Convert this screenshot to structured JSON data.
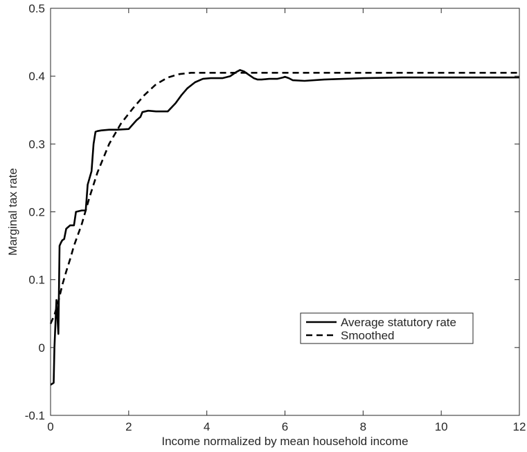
{
  "chart_data": {
    "type": "line",
    "xlabel": "Income normalized by mean household income",
    "ylabel": "Marginal tax rate",
    "xlim": [
      0,
      12
    ],
    "ylim": [
      -0.1,
      0.5
    ],
    "xticks": [
      0,
      2,
      4,
      6,
      8,
      10,
      12
    ],
    "yticks": [
      -0.1,
      0,
      0.1,
      0.2,
      0.3,
      0.4,
      0.5
    ],
    "xtick_labels": [
      "0",
      "2",
      "4",
      "6",
      "8",
      "10",
      "12"
    ],
    "ytick_labels": [
      "-0.1",
      "0",
      "0.1",
      "0.2",
      "0.3",
      "0.4",
      "0.5"
    ],
    "grid": false,
    "legend_position": "center-right",
    "series": [
      {
        "name": "Average statutory rate",
        "style": "solid",
        "color": "#000000",
        "x": [
          0.0,
          0.08,
          0.1,
          0.15,
          0.2,
          0.23,
          0.27,
          0.3,
          0.35,
          0.4,
          0.5,
          0.6,
          0.65,
          0.8,
          0.9,
          0.95,
          1.05,
          1.1,
          1.15,
          1.2,
          1.3,
          1.5,
          1.7,
          2.0,
          2.2,
          2.3,
          2.35,
          2.5,
          2.7,
          3.0,
          3.2,
          3.35,
          3.5,
          3.7,
          3.9,
          4.1,
          4.4,
          4.6,
          4.75,
          4.85,
          4.95,
          5.1,
          5.2,
          5.3,
          5.4,
          5.6,
          5.8,
          5.95,
          6.0,
          6.1,
          6.2,
          6.5,
          7.0,
          7.5,
          8.0,
          9.0,
          10.0,
          11.0,
          12.0
        ],
        "values": [
          -0.055,
          -0.052,
          0.0,
          0.07,
          0.02,
          0.15,
          0.155,
          0.158,
          0.16,
          0.175,
          0.18,
          0.18,
          0.2,
          0.202,
          0.202,
          0.24,
          0.26,
          0.3,
          0.318,
          0.319,
          0.32,
          0.321,
          0.321,
          0.322,
          0.335,
          0.34,
          0.347,
          0.349,
          0.348,
          0.348,
          0.36,
          0.372,
          0.382,
          0.391,
          0.396,
          0.397,
          0.397,
          0.4,
          0.406,
          0.409,
          0.407,
          0.401,
          0.397,
          0.395,
          0.395,
          0.396,
          0.396,
          0.398,
          0.399,
          0.397,
          0.394,
          0.393,
          0.395,
          0.396,
          0.397,
          0.398,
          0.398,
          0.398,
          0.398
        ]
      },
      {
        "name": "Smoothed",
        "style": "dashed",
        "color": "#000000",
        "x": [
          0.0,
          0.1,
          0.2,
          0.3,
          0.4,
          0.5,
          0.6,
          0.8,
          1.0,
          1.2,
          1.5,
          1.8,
          2.1,
          2.4,
          2.7,
          3.0,
          3.3,
          3.6,
          4.0,
          5.0,
          6.0,
          8.0,
          10.0,
          12.0
        ],
        "values": [
          0.035,
          0.048,
          0.068,
          0.092,
          0.112,
          0.13,
          0.15,
          0.182,
          0.222,
          0.258,
          0.3,
          0.33,
          0.352,
          0.372,
          0.388,
          0.398,
          0.403,
          0.405,
          0.405,
          0.405,
          0.405,
          0.405,
          0.405,
          0.405
        ]
      }
    ]
  }
}
